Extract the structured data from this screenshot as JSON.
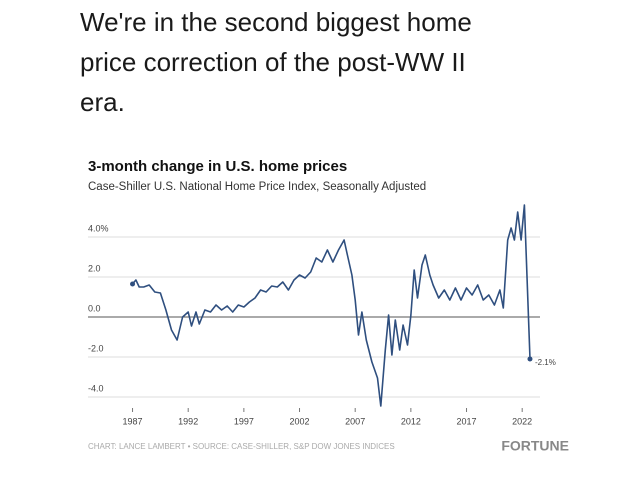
{
  "header": {
    "lines": [
      "We're in the second biggest home",
      "price correction of the post-WW II",
      "era."
    ]
  },
  "chart_data": {
    "type": "line",
    "title": "3-month change in U.S. home prices",
    "subtitle": "Case-Shiller U.S. National Home Price Index, Seasonally Adjusted",
    "footer": "CHART: LANCE LAMBERT • SOURCE: CASE-SHILLER, S&P DOW JONES INDICES",
    "brand": "FORTUNE",
    "color": "#2f4f7f",
    "x": [
      1987.0,
      1987.3,
      1987.6,
      1988.0,
      1988.5,
      1989.0,
      1989.5,
      1990.0,
      1990.5,
      1991.0,
      1991.5,
      1992.0,
      1992.3,
      1992.7,
      1993.0,
      1993.5,
      1994.0,
      1994.5,
      1995.0,
      1995.5,
      1996.0,
      1996.5,
      1997.0,
      1997.5,
      1998.0,
      1998.5,
      1999.0,
      1999.5,
      2000.0,
      2000.5,
      2001.0,
      2001.5,
      2002.0,
      2002.5,
      2003.0,
      2003.5,
      2004.0,
      2004.5,
      2005.0,
      2005.5,
      2006.0,
      2006.3,
      2006.7,
      2007.0,
      2007.3,
      2007.6,
      2008.0,
      2008.5,
      2009.0,
      2009.3,
      2009.7,
      2010.0,
      2010.3,
      2010.6,
      2011.0,
      2011.3,
      2011.7,
      2012.0,
      2012.3,
      2012.6,
      2013.0,
      2013.3,
      2013.7,
      2014.0,
      2014.5,
      2015.0,
      2015.5,
      2016.0,
      2016.5,
      2017.0,
      2017.5,
      2018.0,
      2018.5,
      2019.0,
      2019.5,
      2020.0,
      2020.3,
      2020.7,
      2021.0,
      2021.3,
      2021.6,
      2021.9,
      2022.2,
      2022.7
    ],
    "values": [
      1.65,
      1.85,
      1.5,
      1.5,
      1.6,
      1.25,
      1.2,
      0.35,
      -0.65,
      -1.15,
      0.0,
      0.25,
      -0.45,
      0.25,
      -0.35,
      0.35,
      0.25,
      0.6,
      0.35,
      0.55,
      0.25,
      0.6,
      0.5,
      0.75,
      0.95,
      1.35,
      1.25,
      1.55,
      1.5,
      1.75,
      1.35,
      1.85,
      2.1,
      1.95,
      2.25,
      2.95,
      2.75,
      3.35,
      2.75,
      3.35,
      3.85,
      3.1,
      2.1,
      0.85,
      -0.9,
      0.25,
      -1.15,
      -2.25,
      -3.05,
      -4.45,
      -1.65,
      0.1,
      -1.9,
      -0.15,
      -1.65,
      -0.4,
      -1.4,
      0.1,
      2.35,
      0.95,
      2.6,
      3.1,
      2.1,
      1.6,
      0.95,
      1.35,
      0.85,
      1.45,
      0.85,
      1.45,
      1.1,
      1.6,
      0.85,
      1.1,
      0.6,
      1.35,
      0.45,
      3.85,
      4.45,
      3.85,
      5.25,
      3.85,
      5.6,
      -2.1
    ],
    "value_labels": [
      null,
      null,
      null,
      null,
      null,
      null,
      null,
      null,
      null,
      null,
      null,
      null,
      null,
      null,
      null,
      null,
      null,
      null,
      null,
      null,
      null,
      null,
      null,
      null,
      null,
      null,
      null,
      null,
      null,
      null,
      null,
      null,
      null,
      null,
      null,
      null,
      null,
      null,
      null,
      null,
      null,
      null,
      null,
      null,
      null,
      null,
      null,
      null,
      null,
      null,
      null,
      null,
      null,
      null,
      null,
      null,
      null,
      null,
      null,
      null,
      null,
      null,
      null,
      null,
      null,
      null,
      null,
      null,
      null,
      null,
      null,
      null,
      null,
      null,
      null,
      null,
      null,
      null,
      null,
      null,
      null,
      null,
      null,
      "-2.1%"
    ],
    "xlim": [
      1983,
      2023.6
    ],
    "xticks": [
      1987,
      1992,
      1997,
      2002,
      2007,
      2012,
      2017,
      2022
    ],
    "ylim": [
      -4.5,
      5.8
    ],
    "yticks": [
      {
        "value": 4,
        "label": "4.0%"
      },
      {
        "value": 2,
        "label": "2.0"
      },
      {
        "value": 0,
        "label": "0.0"
      },
      {
        "value": -2,
        "label": "-2.0"
      },
      {
        "value": -4,
        "label": "-4.0"
      }
    ],
    "grid": true
  }
}
